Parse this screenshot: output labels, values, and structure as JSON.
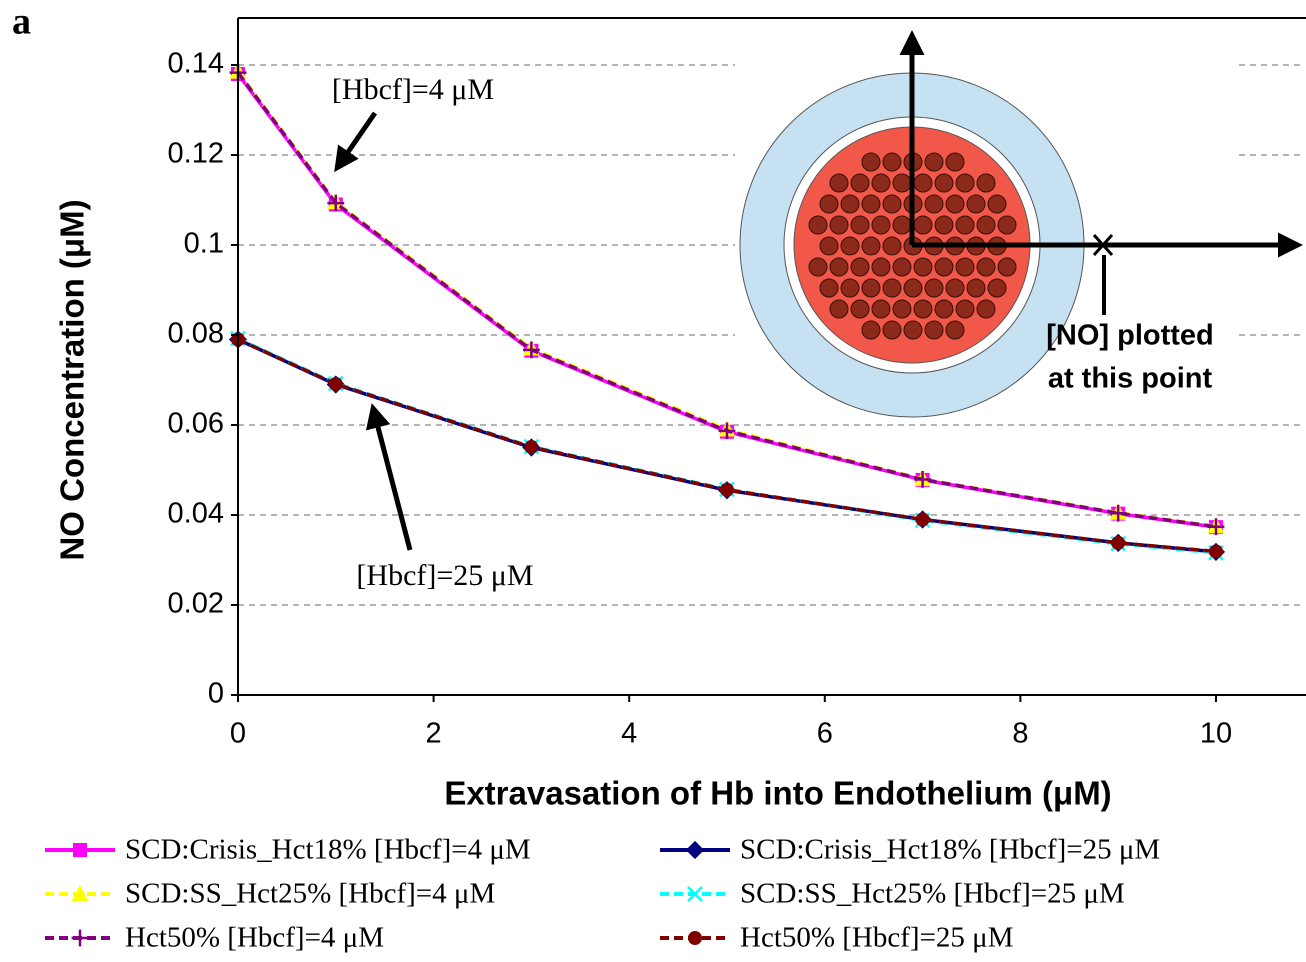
{
  "panel_label": "a",
  "chart_data": {
    "type": "line",
    "xlabel": "Extravasation of Hb into Endothelium (μM)",
    "ylabel": "NO Concentration (μM)",
    "x": [
      0,
      1,
      3,
      5,
      7,
      9,
      10
    ],
    "xlim": [
      0,
      10.9
    ],
    "xticks": [
      0,
      2,
      4,
      6,
      8,
      10
    ],
    "ylim": [
      0,
      0.15
    ],
    "yticks": [
      0,
      0.02,
      0.04,
      0.06,
      0.08,
      0.1,
      0.12,
      0.14
    ],
    "grid": true,
    "series": [
      {
        "name": "SCD:Crisis_Hct18% [Hbcf]=4 μM",
        "color": "#ff00ff",
        "marker": "square",
        "dash": "solid",
        "values": [
          0.138,
          0.109,
          0.0765,
          0.0585,
          0.0478,
          0.0403,
          0.0373
        ]
      },
      {
        "name": "SCD:Crisis_Hct18% [Hbcf]=25 μM",
        "color": "#000080",
        "marker": "diamond",
        "dash": "solid",
        "values": [
          0.079,
          0.069,
          0.055,
          0.0455,
          0.039,
          0.0338,
          0.0318
        ]
      },
      {
        "name": "SCD:SS_Hct25% [Hbcf]=4 μM",
        "color": "#ffff00",
        "marker": "triangle",
        "dash": "dashed",
        "values": [
          0.1385,
          0.1095,
          0.077,
          0.059,
          0.048,
          0.0405,
          0.0375
        ]
      },
      {
        "name": "SCD:SS_Hct25% [Hbcf]=25 μM",
        "color": "#00ffff",
        "marker": "x",
        "dash": "dashed",
        "values": [
          0.0792,
          0.0692,
          0.0552,
          0.0457,
          0.0388,
          0.0336,
          0.0316
        ]
      },
      {
        "name": "Hct50% [Hbcf]=4 μM",
        "color": "#800080",
        "marker": "plus",
        "dash": "dashed",
        "values": [
          0.1383,
          0.1093,
          0.0767,
          0.0587,
          0.0479,
          0.0404,
          0.0374
        ]
      },
      {
        "name": "Hct50% [Hbcf]=25 μM",
        "color": "#800000",
        "marker": "circle",
        "dash": "dashed",
        "values": [
          0.079,
          0.0691,
          0.0551,
          0.0456,
          0.039,
          0.0338,
          0.0319
        ]
      }
    ],
    "annotations": [
      "[Hbcf]=4 μM",
      "[Hbcf]=25 μM"
    ],
    "inset_labels": [
      "[NO] plotted",
      "at this point"
    ]
  }
}
